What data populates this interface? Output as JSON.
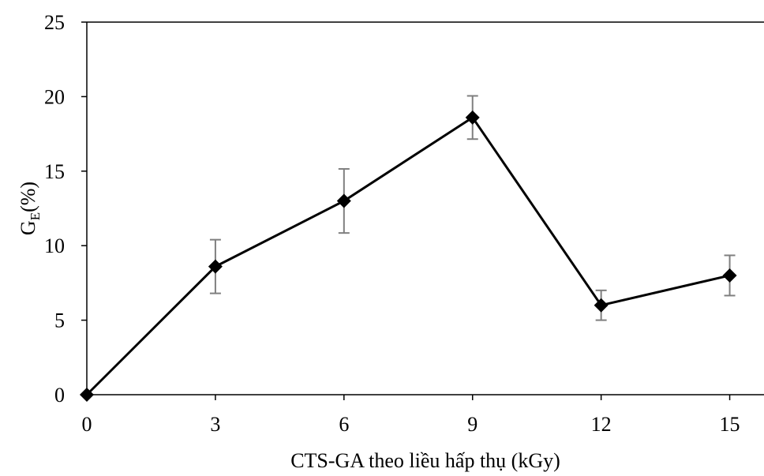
{
  "chart_data": {
    "type": "line",
    "xlabel": "CTS-GA theo liều hấp thụ (kGy)",
    "ylabel": {
      "main": "G",
      "subscript": "E",
      "suffix": "(%)"
    },
    "x": [
      0,
      3,
      6,
      9,
      12,
      15
    ],
    "xticks": [
      "0",
      "3",
      "6",
      "9",
      "12",
      "15"
    ],
    "xlim": [
      0,
      15.8
    ],
    "ylim": [
      0,
      25
    ],
    "yticks": [
      "0",
      "5",
      "10",
      "15",
      "20",
      "25"
    ],
    "grid": false,
    "legend": "none",
    "series": [
      {
        "values": [
          0,
          8.6,
          13.0,
          18.6,
          6.0,
          8.0
        ],
        "error": [
          0,
          1.8,
          2.15,
          1.45,
          1.0,
          1.35
        ],
        "marker": "diamond",
        "color": "#000000",
        "error_color": "#7f7f7f"
      }
    ]
  }
}
